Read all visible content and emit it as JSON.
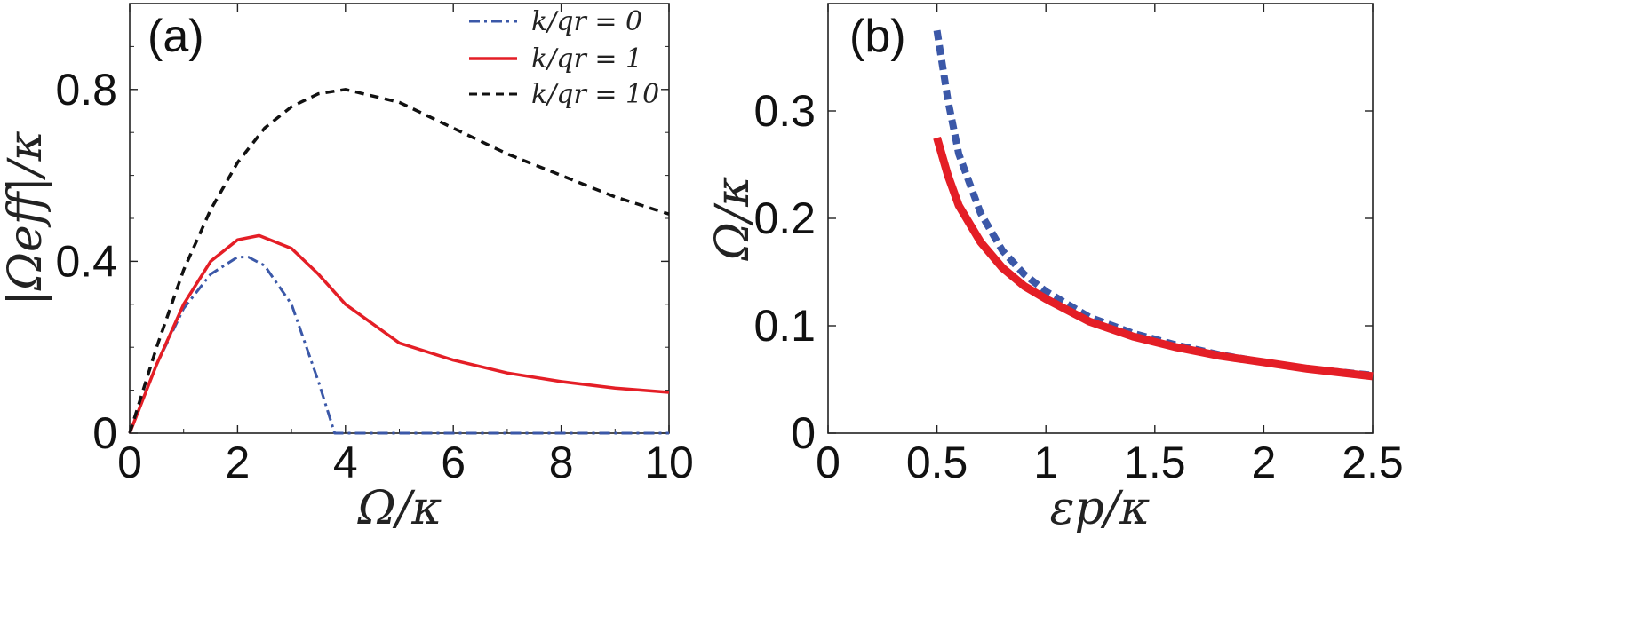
{
  "chart_data": [
    {
      "type": "line",
      "panel_label": "(a)",
      "xlabel": "Ω/κ",
      "ylabel": "|Ωeff|/κ",
      "xlim": [
        0,
        10
      ],
      "ylim": [
        0,
        1
      ],
      "xticks": [
        0,
        2,
        4,
        6,
        8,
        10
      ],
      "xtick_labels": [
        "0",
        "2",
        "4",
        "6",
        "8",
        "10"
      ],
      "yticks": [
        0,
        0.4,
        0.8
      ],
      "ytick_labels": [
        "0",
        "0.4",
        "0.8"
      ],
      "legend_position": "top-right",
      "series": [
        {
          "name": "k/q_r = 0",
          "label": "k/qr = 0",
          "color": "#3b58a8",
          "style": "dashdot",
          "x": [
            0,
            0.5,
            1,
            1.5,
            2,
            2.2,
            2.5,
            3,
            3.5,
            3.8,
            4,
            5,
            6,
            7,
            8,
            9,
            10
          ],
          "y": [
            0,
            0.16,
            0.29,
            0.37,
            0.41,
            0.41,
            0.39,
            0.3,
            0.12,
            0,
            0,
            0,
            0,
            0,
            0,
            0,
            0
          ]
        },
        {
          "name": "k/q_r = 1",
          "label": "k/qr = 1",
          "color": "#e41e26",
          "style": "solid",
          "x": [
            0,
            0.5,
            1,
            1.5,
            2,
            2.4,
            3,
            3.5,
            4,
            5,
            6,
            7,
            8,
            9,
            10
          ],
          "y": [
            0,
            0.16,
            0.3,
            0.4,
            0.45,
            0.46,
            0.43,
            0.37,
            0.3,
            0.21,
            0.17,
            0.14,
            0.12,
            0.105,
            0.095
          ]
        },
        {
          "name": "k/q_r = 10",
          "label": "k/qr = 10",
          "color": "#111111",
          "style": "dashed",
          "x": [
            0,
            0.5,
            1,
            1.5,
            2,
            2.5,
            3,
            3.5,
            4,
            5,
            6,
            7,
            8,
            9,
            10
          ],
          "y": [
            0,
            0.2,
            0.38,
            0.52,
            0.63,
            0.71,
            0.76,
            0.79,
            0.8,
            0.77,
            0.71,
            0.65,
            0.6,
            0.55,
            0.51
          ]
        }
      ]
    },
    {
      "type": "line",
      "panel_label": "(b)",
      "xlabel": "εp/κ",
      "ylabel": "Ω/κ",
      "xlim": [
        0,
        2.5
      ],
      "ylim": [
        0,
        0.4
      ],
      "xticks": [
        0,
        0.5,
        1,
        1.5,
        2,
        2.5
      ],
      "xtick_labels": [
        "0",
        "0.5",
        "1",
        "1.5",
        "2",
        "2.5"
      ],
      "yticks": [
        0,
        0.1,
        0.2,
        0.3
      ],
      "ytick_labels": [
        "0",
        "0.1",
        "0.2",
        "0.3"
      ],
      "series": [
        {
          "name": "dotted",
          "color": "#3b58a8",
          "style": "dotted",
          "x": [
            0.5,
            0.55,
            0.6,
            0.7,
            0.8,
            0.9,
            1,
            1.2,
            1.4,
            1.6,
            1.8,
            2,
            2.2,
            2.5
          ],
          "y": [
            0.375,
            0.31,
            0.26,
            0.205,
            0.17,
            0.148,
            0.132,
            0.108,
            0.093,
            0.082,
            0.073,
            0.066,
            0.06,
            0.054
          ]
        },
        {
          "name": "solid",
          "color": "#e41e26",
          "style": "solid",
          "x": [
            0.5,
            0.55,
            0.6,
            0.7,
            0.8,
            0.9,
            1,
            1.2,
            1.4,
            1.6,
            1.8,
            2,
            2.2,
            2.5
          ],
          "y": [
            0.275,
            0.24,
            0.212,
            0.178,
            0.154,
            0.137,
            0.125,
            0.104,
            0.09,
            0.08,
            0.072,
            0.066,
            0.06,
            0.053
          ]
        }
      ]
    }
  ]
}
